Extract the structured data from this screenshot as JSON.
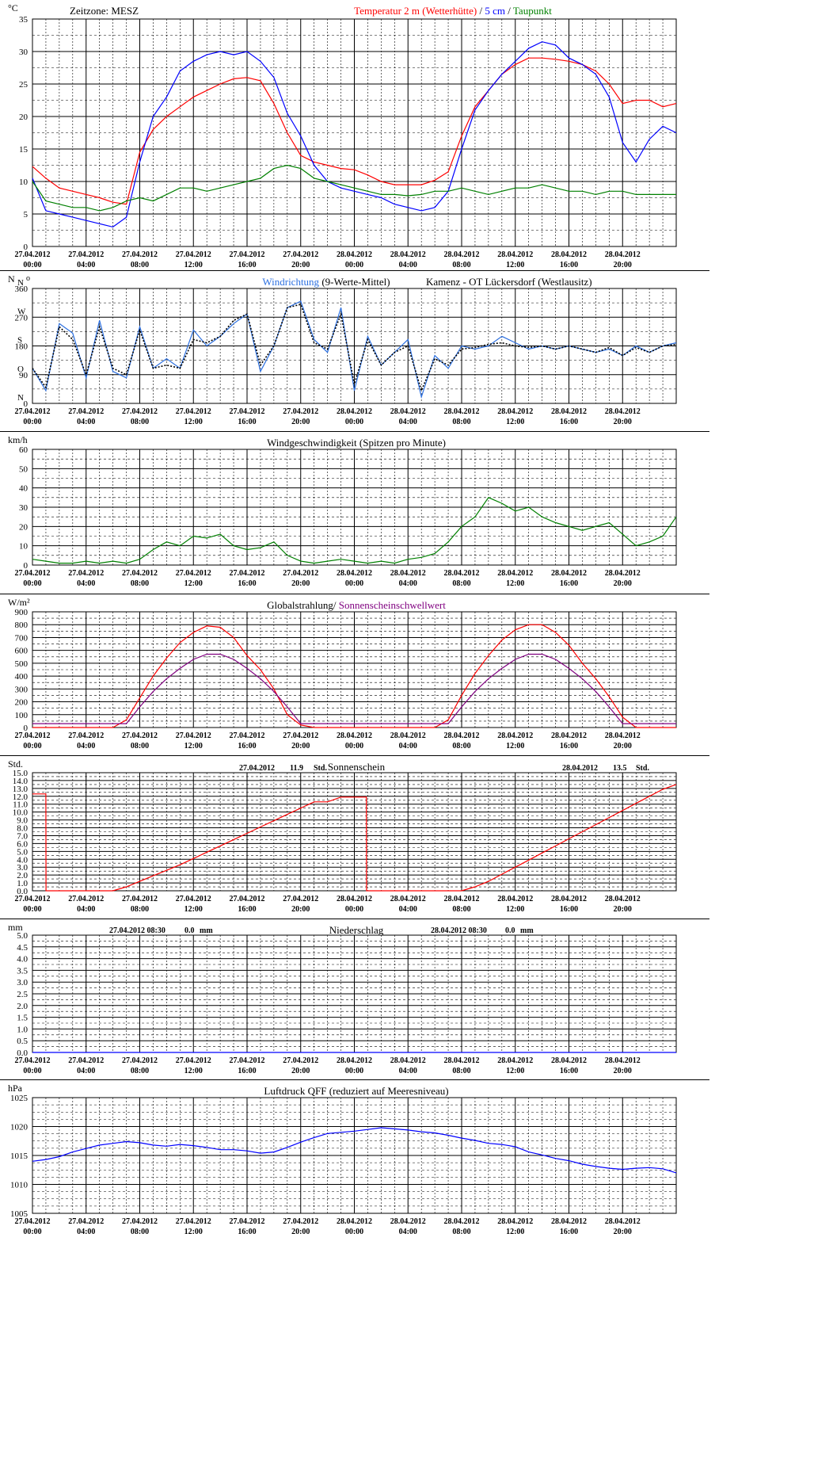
{
  "x_axis": {
    "dates": [
      "27.04.2012",
      "27.04.2012",
      "27.04.2012",
      "27.04.2012",
      "27.04.2012",
      "27.04.2012",
      "28.04.2012",
      "28.04.2012",
      "28.04.2012",
      "28.04.2012",
      "28.04.2012",
      "28.04.2012"
    ],
    "times": [
      "00:00",
      "04:00",
      "08:00",
      "12:00",
      "16:00",
      "20:00",
      "00:00",
      "04:00",
      "08:00",
      "12:00",
      "16:00",
      "20:00"
    ]
  },
  "panels": [
    {
      "id": "temperature",
      "unit": "°C",
      "title_parts": [
        {
          "text": "Zeitzone: MESZ",
          "color": "#000000",
          "pos": "left"
        },
        {
          "text": "Temperatur 2 m (Wetterhütte)",
          "color": "#ff0000"
        },
        {
          "text": "  /  ",
          "color": "#000000"
        },
        {
          "text": "5 cm",
          "color": "#0000ff"
        },
        {
          "text": " / ",
          "color": "#000000"
        },
        {
          "text": "Taupunkt",
          "color": "#008000"
        }
      ]
    },
    {
      "id": "wind_direction",
      "unit": "N",
      "unit2": "o",
      "title_parts": [
        {
          "text": "Windrichtung",
          "color": "#2b6fe0"
        },
        {
          "text": " (9-Werte-Mittel)",
          "color": "#000000"
        },
        {
          "text": "Kamenz - OT Lückersdorf (Westlausitz)",
          "color": "#000000",
          "pos": "right"
        }
      ]
    },
    {
      "id": "wind_speed",
      "unit": "km/h",
      "title_parts": [
        {
          "text": "Windgeschwindigkeit (Spitzen pro Minute)",
          "color": "#000000"
        }
      ]
    },
    {
      "id": "radiation",
      "unit": "W/m²",
      "title_parts": [
        {
          "text": "Globalstrahlung/ ",
          "color": "#000000"
        },
        {
          "text": "Sonnenscheinschwellwert",
          "color": "#800080"
        }
      ]
    },
    {
      "id": "sunshine",
      "unit": "Std.",
      "title_parts": [
        {
          "text": "Sonnenschein",
          "color": "#000000"
        }
      ],
      "annotations": [
        {
          "date": "27.04.2012",
          "value": "11.9",
          "unit": "Std."
        },
        {
          "date": "28.04.2012",
          "value": "13.5",
          "unit": "Std."
        }
      ]
    },
    {
      "id": "precipitation",
      "unit": "mm",
      "title_parts": [
        {
          "text": "Niederschlag",
          "color": "#000000"
        }
      ],
      "annotations": [
        {
          "date": "27.04.2012 08:30",
          "value": "0.0",
          "unit": "mm"
        },
        {
          "date": "28.04.2012 08:30",
          "value": "0.0",
          "unit": "mm"
        }
      ]
    },
    {
      "id": "pressure",
      "unit": "hPa",
      "title_parts": [
        {
          "text": "Luftdruck QFF (reduziert auf Meeresniveau)",
          "color": "#000000"
        }
      ]
    }
  ],
  "chart_data": [
    {
      "id": "temperature",
      "type": "line",
      "ylim": [
        0,
        35
      ],
      "yticks": [
        "0",
        "5",
        "10",
        "15",
        "20",
        "25",
        "30",
        "35"
      ],
      "x_hours": [
        0,
        1,
        2,
        3,
        4,
        5,
        6,
        7,
        8,
        9,
        10,
        11,
        12,
        13,
        14,
        15,
        16,
        17,
        18,
        19,
        20,
        21,
        22,
        23,
        24,
        25,
        26,
        27,
        28,
        29,
        30,
        31,
        32,
        33,
        34,
        35,
        36,
        37,
        38,
        39,
        40,
        41,
        42,
        43,
        44,
        45,
        46,
        47,
        48
      ],
      "series": [
        {
          "name": "Temperatur 2 m (Wetterhütte)",
          "color": "#ff0000",
          "values": [
            12.3,
            10.5,
            9.0,
            8.5,
            8.0,
            7.5,
            6.8,
            6.5,
            14.5,
            18.0,
            20.0,
            21.5,
            23.0,
            24.0,
            25.0,
            25.8,
            26.0,
            25.5,
            22.0,
            17.5,
            14.0,
            13.0,
            12.5,
            12.0,
            11.8,
            11.0,
            10.0,
            9.5,
            9.5,
            9.5,
            10.2,
            11.5,
            17.0,
            21.5,
            24.0,
            26.5,
            28.0,
            29.0,
            29.0,
            28.8,
            28.5,
            28.0,
            27.0,
            25.0,
            22.0,
            22.5,
            22.5,
            21.5,
            22.0
          ]
        },
        {
          "name": "5 cm",
          "color": "#0000ff",
          "values": [
            10.5,
            5.5,
            5.0,
            4.5,
            4.0,
            3.5,
            3.0,
            4.5,
            13.0,
            20.0,
            23.0,
            27.0,
            28.5,
            29.5,
            30.0,
            29.5,
            30.0,
            28.5,
            26.0,
            20.5,
            17.0,
            12.5,
            10.0,
            9.0,
            8.5,
            8.0,
            7.5,
            6.5,
            6.0,
            5.5,
            6.0,
            8.5,
            15.0,
            21.0,
            24.0,
            26.5,
            28.5,
            30.5,
            31.5,
            31.0,
            29.0,
            28.0,
            26.5,
            23.0,
            16.0,
            13.0,
            16.5,
            18.5,
            17.5
          ]
        },
        {
          "name": "Taupunkt",
          "color": "#008000",
          "values": [
            10.0,
            7.0,
            6.5,
            6.0,
            6.0,
            5.5,
            6.0,
            7.0,
            7.5,
            7.0,
            8.0,
            9.0,
            9.0,
            8.5,
            9.0,
            9.5,
            10.0,
            10.5,
            12.0,
            12.5,
            12.0,
            10.5,
            10.0,
            9.5,
            9.0,
            8.5,
            8.0,
            8.0,
            7.8,
            8.0,
            8.5,
            8.5,
            9.0,
            8.5,
            8.0,
            8.5,
            9.0,
            9.0,
            9.5,
            9.0,
            8.5,
            8.5,
            8.0,
            8.5,
            8.5,
            8.0,
            8.0,
            8.0,
            8.0
          ]
        }
      ]
    },
    {
      "id": "wind_direction",
      "type": "line",
      "ylim": [
        0,
        360
      ],
      "yticks": [
        "0",
        "90",
        "180",
        "270",
        "360"
      ],
      "ytick_letters": [
        "N",
        "O",
        "S",
        "W",
        "N"
      ],
      "x_hours": [
        0,
        1,
        2,
        3,
        4,
        5,
        6,
        7,
        8,
        9,
        10,
        11,
        12,
        13,
        14,
        15,
        16,
        17,
        18,
        19,
        20,
        21,
        22,
        23,
        24,
        25,
        26,
        27,
        28,
        29,
        30,
        31,
        32,
        33,
        34,
        35,
        36,
        37,
        38,
        39,
        40,
        41,
        42,
        43,
        44,
        45,
        46,
        47,
        48
      ],
      "series": [
        {
          "name": "Windrichtung",
          "color": "#2b6fe0",
          "values": [
            110,
            40,
            250,
            220,
            80,
            260,
            100,
            80,
            240,
            110,
            140,
            110,
            230,
            180,
            210,
            250,
            280,
            100,
            180,
            300,
            320,
            200,
            160,
            300,
            40,
            210,
            120,
            160,
            200,
            20,
            150,
            110,
            180,
            170,
            180,
            210,
            190,
            170,
            180,
            170,
            180,
            170,
            160,
            170,
            150,
            180,
            160,
            180,
            190
          ]
        },
        {
          "name": "9-Werte-Mittel",
          "color": "#000000",
          "values": [
            110,
            50,
            240,
            200,
            90,
            240,
            110,
            90,
            230,
            110,
            120,
            110,
            200,
            190,
            210,
            260,
            280,
            120,
            180,
            300,
            310,
            190,
            170,
            280,
            60,
            200,
            120,
            160,
            180,
            40,
            140,
            120,
            170,
            175,
            185,
            190,
            180,
            175,
            180,
            170,
            180,
            170,
            160,
            175,
            150,
            175,
            160,
            180,
            185
          ]
        }
      ]
    },
    {
      "id": "wind_speed",
      "type": "line",
      "ylim": [
        0,
        60
      ],
      "yticks": [
        "0",
        "10",
        "20",
        "30",
        "40",
        "50",
        "60"
      ],
      "x_hours": [
        0,
        1,
        2,
        3,
        4,
        5,
        6,
        7,
        8,
        9,
        10,
        11,
        12,
        13,
        14,
        15,
        16,
        17,
        18,
        19,
        20,
        21,
        22,
        23,
        24,
        25,
        26,
        27,
        28,
        29,
        30,
        31,
        32,
        33,
        34,
        35,
        36,
        37,
        38,
        39,
        40,
        41,
        42,
        43,
        44,
        45,
        46,
        47,
        48
      ],
      "series": [
        {
          "name": "Windgeschwindigkeit",
          "color": "#008000",
          "values": [
            3,
            2,
            1,
            1,
            2,
            1,
            2,
            1,
            3,
            8,
            12,
            10,
            15,
            14,
            16,
            10,
            8,
            9,
            12,
            5,
            2,
            1,
            2,
            3,
            2,
            1,
            2,
            1,
            3,
            4,
            6,
            12,
            20,
            25,
            35,
            32,
            28,
            30,
            25,
            22,
            20,
            18,
            20,
            22,
            16,
            10,
            12,
            15,
            25
          ]
        }
      ]
    },
    {
      "id": "radiation",
      "type": "line",
      "ylim": [
        0,
        900
      ],
      "yticks": [
        "0",
        "100",
        "200",
        "300",
        "400",
        "500",
        "600",
        "700",
        "800",
        "900"
      ],
      "x_hours": [
        0,
        1,
        2,
        3,
        4,
        5,
        6,
        7,
        8,
        9,
        10,
        11,
        12,
        13,
        14,
        15,
        16,
        17,
        18,
        19,
        20,
        21,
        22,
        23,
        24,
        25,
        26,
        27,
        28,
        29,
        30,
        31,
        32,
        33,
        34,
        35,
        36,
        37,
        38,
        39,
        40,
        41,
        42,
        43,
        44,
        45,
        46,
        47,
        48
      ],
      "series": [
        {
          "name": "Globalstrahlung",
          "color": "#ff0000",
          "values": [
            0,
            0,
            0,
            0,
            0,
            0,
            0,
            60,
            230,
            400,
            540,
            660,
            740,
            790,
            780,
            700,
            560,
            450,
            300,
            100,
            20,
            0,
            0,
            0,
            0,
            0,
            0,
            0,
            0,
            0,
            0,
            60,
            250,
            420,
            560,
            680,
            760,
            800,
            800,
            740,
            640,
            500,
            380,
            240,
            80,
            0,
            0,
            0,
            0
          ]
        },
        {
          "name": "Sonnenscheinschwellwert",
          "color": "#800080",
          "values": [
            30,
            30,
            30,
            30,
            30,
            30,
            30,
            30,
            160,
            280,
            380,
            460,
            530,
            570,
            570,
            530,
            460,
            380,
            280,
            160,
            30,
            30,
            30,
            30,
            30,
            30,
            30,
            30,
            30,
            30,
            30,
            30,
            160,
            280,
            380,
            460,
            530,
            570,
            570,
            530,
            460,
            380,
            280,
            160,
            30,
            30,
            30,
            30,
            30
          ]
        }
      ]
    },
    {
      "id": "sunshine",
      "type": "line",
      "ylim": [
        0,
        15
      ],
      "yticks": [
        "0.0",
        "1.0",
        "2.0",
        "3.0",
        "4.0",
        "5.0",
        "6.0",
        "7.0",
        "8.0",
        "9.0",
        "10.0",
        "11.0",
        "12.0",
        "13.0",
        "14.0",
        "15.0"
      ],
      "x_hours": [
        0,
        1,
        1.01,
        6,
        7,
        8,
        9,
        10,
        11,
        12,
        13,
        14,
        15,
        16,
        17,
        18,
        19,
        20,
        21,
        22,
        23,
        24.9,
        24.91,
        25,
        26,
        27,
        28,
        29,
        30,
        31,
        32,
        33,
        34,
        35,
        36,
        37,
        38,
        39,
        40,
        41,
        42,
        43,
        44,
        45,
        46,
        47,
        48
      ],
      "series": [
        {
          "name": "Sonnenschein",
          "color": "#ff0000",
          "values": [
            12.3,
            12.3,
            0,
            0,
            0.5,
            1.2,
            1.9,
            2.6,
            3.3,
            4.1,
            4.9,
            5.7,
            6.5,
            7.3,
            8.1,
            8.9,
            9.7,
            10.5,
            11.3,
            11.3,
            11.9,
            11.9,
            0,
            0,
            0,
            0,
            0,
            0,
            0,
            0,
            0,
            0.5,
            1.2,
            2.1,
            3.0,
            3.9,
            4.8,
            5.7,
            6.6,
            7.5,
            8.4,
            9.3,
            10.2,
            11.1,
            12.0,
            12.9,
            13.5
          ]
        }
      ]
    },
    {
      "id": "precipitation",
      "type": "line",
      "ylim": [
        0,
        5
      ],
      "yticks": [
        "0.0",
        "0.5",
        "1.0",
        "1.5",
        "2.0",
        "2.5",
        "3.0",
        "3.5",
        "4.0",
        "4.5",
        "5.0"
      ],
      "x_hours": [
        0,
        48
      ],
      "series": [
        {
          "name": "Niederschlag",
          "color": "#0000ff",
          "values": [
            0,
            0
          ]
        }
      ]
    },
    {
      "id": "pressure",
      "type": "line",
      "ylim": [
        1005,
        1025
      ],
      "yticks": [
        "1005",
        "1010",
        "1015",
        "1020",
        "1025"
      ],
      "x_hours": [
        0,
        1,
        2,
        3,
        4,
        5,
        6,
        7,
        8,
        9,
        10,
        11,
        12,
        13,
        14,
        15,
        16,
        17,
        18,
        19,
        20,
        21,
        22,
        23,
        24,
        25,
        26,
        27,
        28,
        29,
        30,
        31,
        32,
        33,
        34,
        35,
        36,
        37,
        38,
        39,
        40,
        41,
        42,
        43,
        44,
        45,
        46,
        47,
        48
      ],
      "series": [
        {
          "name": "Luftdruck QFF",
          "color": "#0000ff",
          "values": [
            1014.0,
            1014.3,
            1014.8,
            1015.6,
            1016.2,
            1016.8,
            1017.1,
            1017.4,
            1017.2,
            1016.8,
            1016.6,
            1016.9,
            1016.7,
            1016.4,
            1016.0,
            1016.0,
            1015.8,
            1015.4,
            1015.6,
            1016.4,
            1017.3,
            1018.1,
            1018.8,
            1019.0,
            1019.2,
            1019.5,
            1019.8,
            1019.6,
            1019.4,
            1019.1,
            1018.9,
            1018.5,
            1018.0,
            1017.6,
            1017.1,
            1016.9,
            1016.5,
            1015.6,
            1015.1,
            1014.5,
            1014.1,
            1013.5,
            1013.1,
            1012.8,
            1012.6,
            1012.8,
            1012.9,
            1012.7,
            1012.0
          ]
        }
      ]
    }
  ]
}
